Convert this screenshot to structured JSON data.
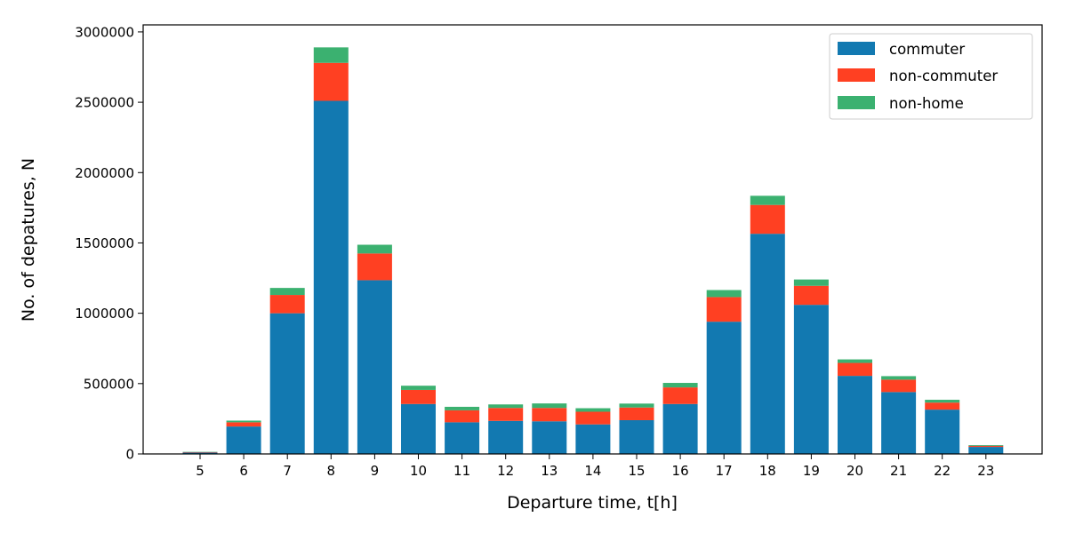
{
  "chart_data": {
    "type": "bar",
    "stacked": true,
    "categories": [
      "5",
      "6",
      "7",
      "8",
      "9",
      "10",
      "11",
      "12",
      "13",
      "14",
      "15",
      "16",
      "17",
      "18",
      "19",
      "20",
      "21",
      "22",
      "23"
    ],
    "series": [
      {
        "name": "commuter",
        "color": "#1279b1",
        "values": [
          10000,
          195000,
          1000000,
          2510000,
          1235000,
          355000,
          225000,
          235000,
          232000,
          210000,
          240000,
          355000,
          940000,
          1565000,
          1060000,
          555000,
          440000,
          315000,
          50000
        ]
      },
      {
        "name": "non-commuter",
        "color": "#ff4022",
        "values": [
          3000,
          30000,
          130000,
          270000,
          190000,
          100000,
          85000,
          92000,
          95000,
          90000,
          90000,
          118000,
          175000,
          205000,
          135000,
          92000,
          88000,
          50000,
          8000
        ]
      },
      {
        "name": "non-home",
        "color": "#3bb170",
        "values": [
          2000,
          12000,
          50000,
          110000,
          62000,
          30000,
          25000,
          25000,
          32000,
          25000,
          28000,
          32000,
          50000,
          65000,
          45000,
          25000,
          25000,
          20000,
          5000
        ]
      }
    ],
    "xlabel": "Departure time, t[h]",
    "ylabel": "No. of depatures, N",
    "ylim": [
      0,
      3050000
    ],
    "yticks": [
      0,
      500000,
      1000000,
      1500000,
      2000000,
      2500000,
      3000000
    ],
    "ytick_labels": [
      "0",
      "500000",
      "1000000",
      "1500000",
      "2000000",
      "2500000",
      "3000000"
    ],
    "grid": false,
    "legend": {
      "position": "top-right",
      "entries": [
        "commuter",
        "non-commuter",
        "non-home"
      ]
    }
  }
}
